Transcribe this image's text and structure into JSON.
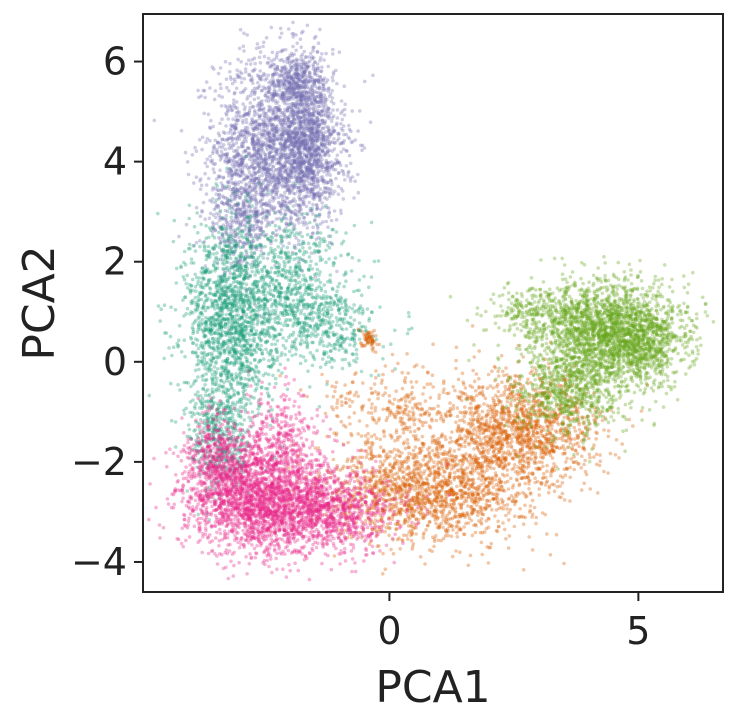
{
  "chart_data": {
    "type": "scatter",
    "title": "",
    "xlabel": "PCA1",
    "ylabel": "PCA2",
    "xlim": [
      -4.95,
      6.7
    ],
    "ylim": [
      -4.6,
      6.95
    ],
    "xticks": [
      0,
      5
    ],
    "xtick_labels": [
      "0",
      "5"
    ],
    "yticks": [
      -4,
      -2,
      0,
      2,
      4,
      6
    ],
    "ytick_labels": [
      "−4",
      "−2",
      "0",
      "2",
      "4",
      "6"
    ],
    "grid": false,
    "legend": "none",
    "point_alpha": 0.35,
    "series": [
      {
        "color": "#7570b3",
        "clusters": [
          {
            "x": -2.3,
            "y": 4.4,
            "sx": 0.6,
            "sy": 0.9,
            "n": 1800
          },
          {
            "x": -1.6,
            "y": 4.2,
            "sx": 0.35,
            "sy": 0.7,
            "n": 900
          },
          {
            "x": -3.0,
            "y": 3.0,
            "sx": 0.35,
            "sy": 0.6,
            "n": 500
          },
          {
            "x": -1.8,
            "y": 5.6,
            "sx": 0.25,
            "sy": 0.35,
            "n": 350
          }
        ]
      },
      {
        "color": "#1b9e77",
        "clusters": [
          {
            "x": -3.2,
            "y": 0.8,
            "sx": 0.45,
            "sy": 1.0,
            "n": 1500
          },
          {
            "x": -2.0,
            "y": 1.5,
            "sx": 0.6,
            "sy": 0.7,
            "n": 700
          },
          {
            "x": -3.4,
            "y": -1.5,
            "sx": 0.3,
            "sy": 0.6,
            "n": 400
          },
          {
            "x": -1.2,
            "y": 0.7,
            "sx": 0.5,
            "sy": 0.4,
            "n": 300
          }
        ]
      },
      {
        "color": "#d95f02",
        "clusters": [
          {
            "x": 0.8,
            "y": -2.6,
            "sx": 1.0,
            "sy": 0.5,
            "n": 1500
          },
          {
            "x": 2.6,
            "y": -1.4,
            "sx": 0.8,
            "sy": 0.55,
            "n": 1400
          },
          {
            "x": -0.4,
            "y": 0.45,
            "sx": 0.08,
            "sy": 0.1,
            "n": 60
          },
          {
            "x": 0.2,
            "y": -1.0,
            "sx": 0.8,
            "sy": 0.5,
            "n": 300
          }
        ]
      },
      {
        "color": "#66a61e",
        "clusters": [
          {
            "x": 4.4,
            "y": 0.6,
            "sx": 0.7,
            "sy": 0.5,
            "n": 2000
          },
          {
            "x": 3.6,
            "y": -0.6,
            "sx": 0.55,
            "sy": 0.45,
            "n": 700
          },
          {
            "x": 5.2,
            "y": 0.3,
            "sx": 0.4,
            "sy": 0.4,
            "n": 400
          },
          {
            "x": 3.0,
            "y": 1.0,
            "sx": 0.5,
            "sy": 0.3,
            "n": 250
          }
        ]
      },
      {
        "color": "#e7298a",
        "clusters": [
          {
            "x": -2.6,
            "y": -2.7,
            "sx": 0.75,
            "sy": 0.55,
            "n": 2200
          },
          {
            "x": -1.2,
            "y": -3.0,
            "sx": 0.7,
            "sy": 0.4,
            "n": 900
          },
          {
            "x": -3.5,
            "y": -2.0,
            "sx": 0.3,
            "sy": 0.5,
            "n": 400
          },
          {
            "x": -2.2,
            "y": -1.5,
            "sx": 0.4,
            "sy": 0.5,
            "n": 300
          }
        ]
      }
    ]
  }
}
